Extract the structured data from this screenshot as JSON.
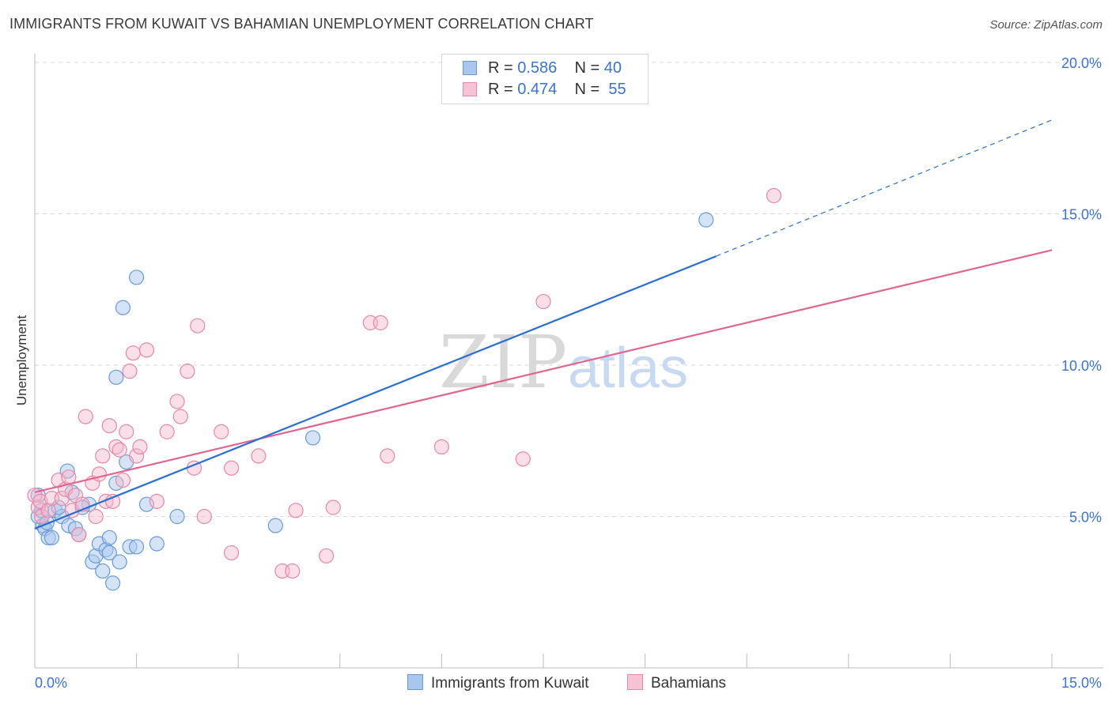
{
  "header": {
    "title": "IMMIGRANTS FROM KUWAIT VS BAHAMIAN UNEMPLOYMENT CORRELATION CHART",
    "source": "Source: ZipAtlas.com"
  },
  "watermark": {
    "zip": "ZIP",
    "atlas": "atlas"
  },
  "legend": {
    "rows": [
      {
        "r_label": "R =",
        "r_value": "0.586",
        "n_label": "N =",
        "n_value": "40"
      },
      {
        "r_label": "R =",
        "r_value": "0.474",
        "n_label": "N =",
        "n_value": "55"
      }
    ]
  },
  "bottom_legend": {
    "kuwait": "Immigrants from Kuwait",
    "bahamians": "Bahamians"
  },
  "colors": {
    "kuwait_fill": "#a9c7ee",
    "kuwait_stroke": "#6a9ad8",
    "kuwait_line": "#2a6fd0",
    "bahamian_fill": "#f7b8cb",
    "bahamian_stroke": "#e888a6",
    "bahamian_line": "#e0668f",
    "tick_label": "#3d73c8",
    "grid": "#d9d9d9"
  },
  "chart_data": {
    "type": "scatter",
    "title": "IMMIGRANTS FROM KUWAIT VS BAHAMIAN UNEMPLOYMENT CORRELATION CHART",
    "xlabel": "",
    "ylabel": "Unemployment",
    "xlim": [
      0,
      15
    ],
    "ylim": [
      0,
      20
    ],
    "x_tick_labels": [
      "0.0%",
      "15.0%"
    ],
    "y_ticks": [
      5,
      10,
      15,
      20
    ],
    "y_tick_labels": [
      "5.0%",
      "10.0%",
      "15.0%",
      "20.0%"
    ],
    "grid": true,
    "legend_position": "top-center",
    "series": [
      {
        "name": "Immigrants from Kuwait",
        "r": 0.586,
        "n": 40,
        "trend": {
          "x": [
            0,
            10.05
          ],
          "y": [
            4.6,
            13.6
          ]
        },
        "trend_dashed": {
          "x": [
            10.05,
            15
          ],
          "y": [
            13.6,
            18.1
          ]
        },
        "points": [
          [
            0.05,
            5.7
          ],
          [
            0.05,
            5.0
          ],
          [
            0.1,
            5.2
          ],
          [
            0.12,
            4.7
          ],
          [
            0.15,
            4.6
          ],
          [
            0.18,
            4.8
          ],
          [
            0.2,
            4.3
          ],
          [
            0.25,
            4.3
          ],
          [
            0.3,
            5.2
          ],
          [
            0.4,
            5.0
          ],
          [
            0.48,
            6.5
          ],
          [
            0.5,
            4.7
          ],
          [
            0.55,
            5.8
          ],
          [
            0.6,
            4.6
          ],
          [
            0.65,
            4.4
          ],
          [
            0.8,
            5.4
          ],
          [
            0.85,
            3.5
          ],
          [
            0.9,
            3.7
          ],
          [
            0.95,
            4.1
          ],
          [
            1.0,
            3.2
          ],
          [
            1.05,
            3.9
          ],
          [
            1.1,
            3.8
          ],
          [
            1.1,
            4.3
          ],
          [
            1.15,
            2.8
          ],
          [
            1.2,
            6.1
          ],
          [
            1.25,
            3.5
          ],
          [
            1.3,
            11.9
          ],
          [
            1.35,
            6.8
          ],
          [
            1.4,
            4.0
          ],
          [
            1.2,
            9.6
          ],
          [
            1.5,
            4.0
          ],
          [
            1.5,
            12.9
          ],
          [
            1.65,
            5.4
          ],
          [
            1.8,
            4.1
          ],
          [
            2.1,
            5.0
          ],
          [
            3.55,
            4.7
          ],
          [
            4.1,
            7.6
          ],
          [
            9.9,
            14.8
          ],
          [
            0.35,
            5.3
          ],
          [
            0.7,
            5.3
          ]
        ]
      },
      {
        "name": "Bahamians",
        "r": 0.474,
        "n": 55,
        "trend": {
          "x": [
            0,
            15
          ],
          "y": [
            5.8,
            13.8
          ]
        },
        "points": [
          [
            0.0,
            5.7
          ],
          [
            0.05,
            5.3
          ],
          [
            0.08,
            5.5
          ],
          [
            0.1,
            5.0
          ],
          [
            0.2,
            5.2
          ],
          [
            0.25,
            5.6
          ],
          [
            0.35,
            6.2
          ],
          [
            0.4,
            5.6
          ],
          [
            0.45,
            5.9
          ],
          [
            0.5,
            6.3
          ],
          [
            0.55,
            5.2
          ],
          [
            0.6,
            5.7
          ],
          [
            0.65,
            4.4
          ],
          [
            0.7,
            5.4
          ],
          [
            0.75,
            8.3
          ],
          [
            0.85,
            6.1
          ],
          [
            0.9,
            5.0
          ],
          [
            0.95,
            6.4
          ],
          [
            1.0,
            7.0
          ],
          [
            1.05,
            5.5
          ],
          [
            1.1,
            8.0
          ],
          [
            1.15,
            5.5
          ],
          [
            1.2,
            7.3
          ],
          [
            1.25,
            7.2
          ],
          [
            1.3,
            6.2
          ],
          [
            1.35,
            7.8
          ],
          [
            1.4,
            9.8
          ],
          [
            1.45,
            10.4
          ],
          [
            1.5,
            7.0
          ],
          [
            1.55,
            7.3
          ],
          [
            1.65,
            10.5
          ],
          [
            1.8,
            5.5
          ],
          [
            1.95,
            7.8
          ],
          [
            2.1,
            8.8
          ],
          [
            2.15,
            8.3
          ],
          [
            2.25,
            9.8
          ],
          [
            2.35,
            6.6
          ],
          [
            2.4,
            11.3
          ],
          [
            2.5,
            5.0
          ],
          [
            2.75,
            7.8
          ],
          [
            2.9,
            6.6
          ],
          [
            3.3,
            7.0
          ],
          [
            3.65,
            3.2
          ],
          [
            3.8,
            3.2
          ],
          [
            3.85,
            5.2
          ],
          [
            4.3,
            3.7
          ],
          [
            4.4,
            5.3
          ],
          [
            4.95,
            11.4
          ],
          [
            5.1,
            11.4
          ],
          [
            5.2,
            7.0
          ],
          [
            6.0,
            7.3
          ],
          [
            7.2,
            6.9
          ],
          [
            7.5,
            12.1
          ],
          [
            10.9,
            15.6
          ],
          [
            2.9,
            3.8
          ]
        ]
      }
    ]
  }
}
